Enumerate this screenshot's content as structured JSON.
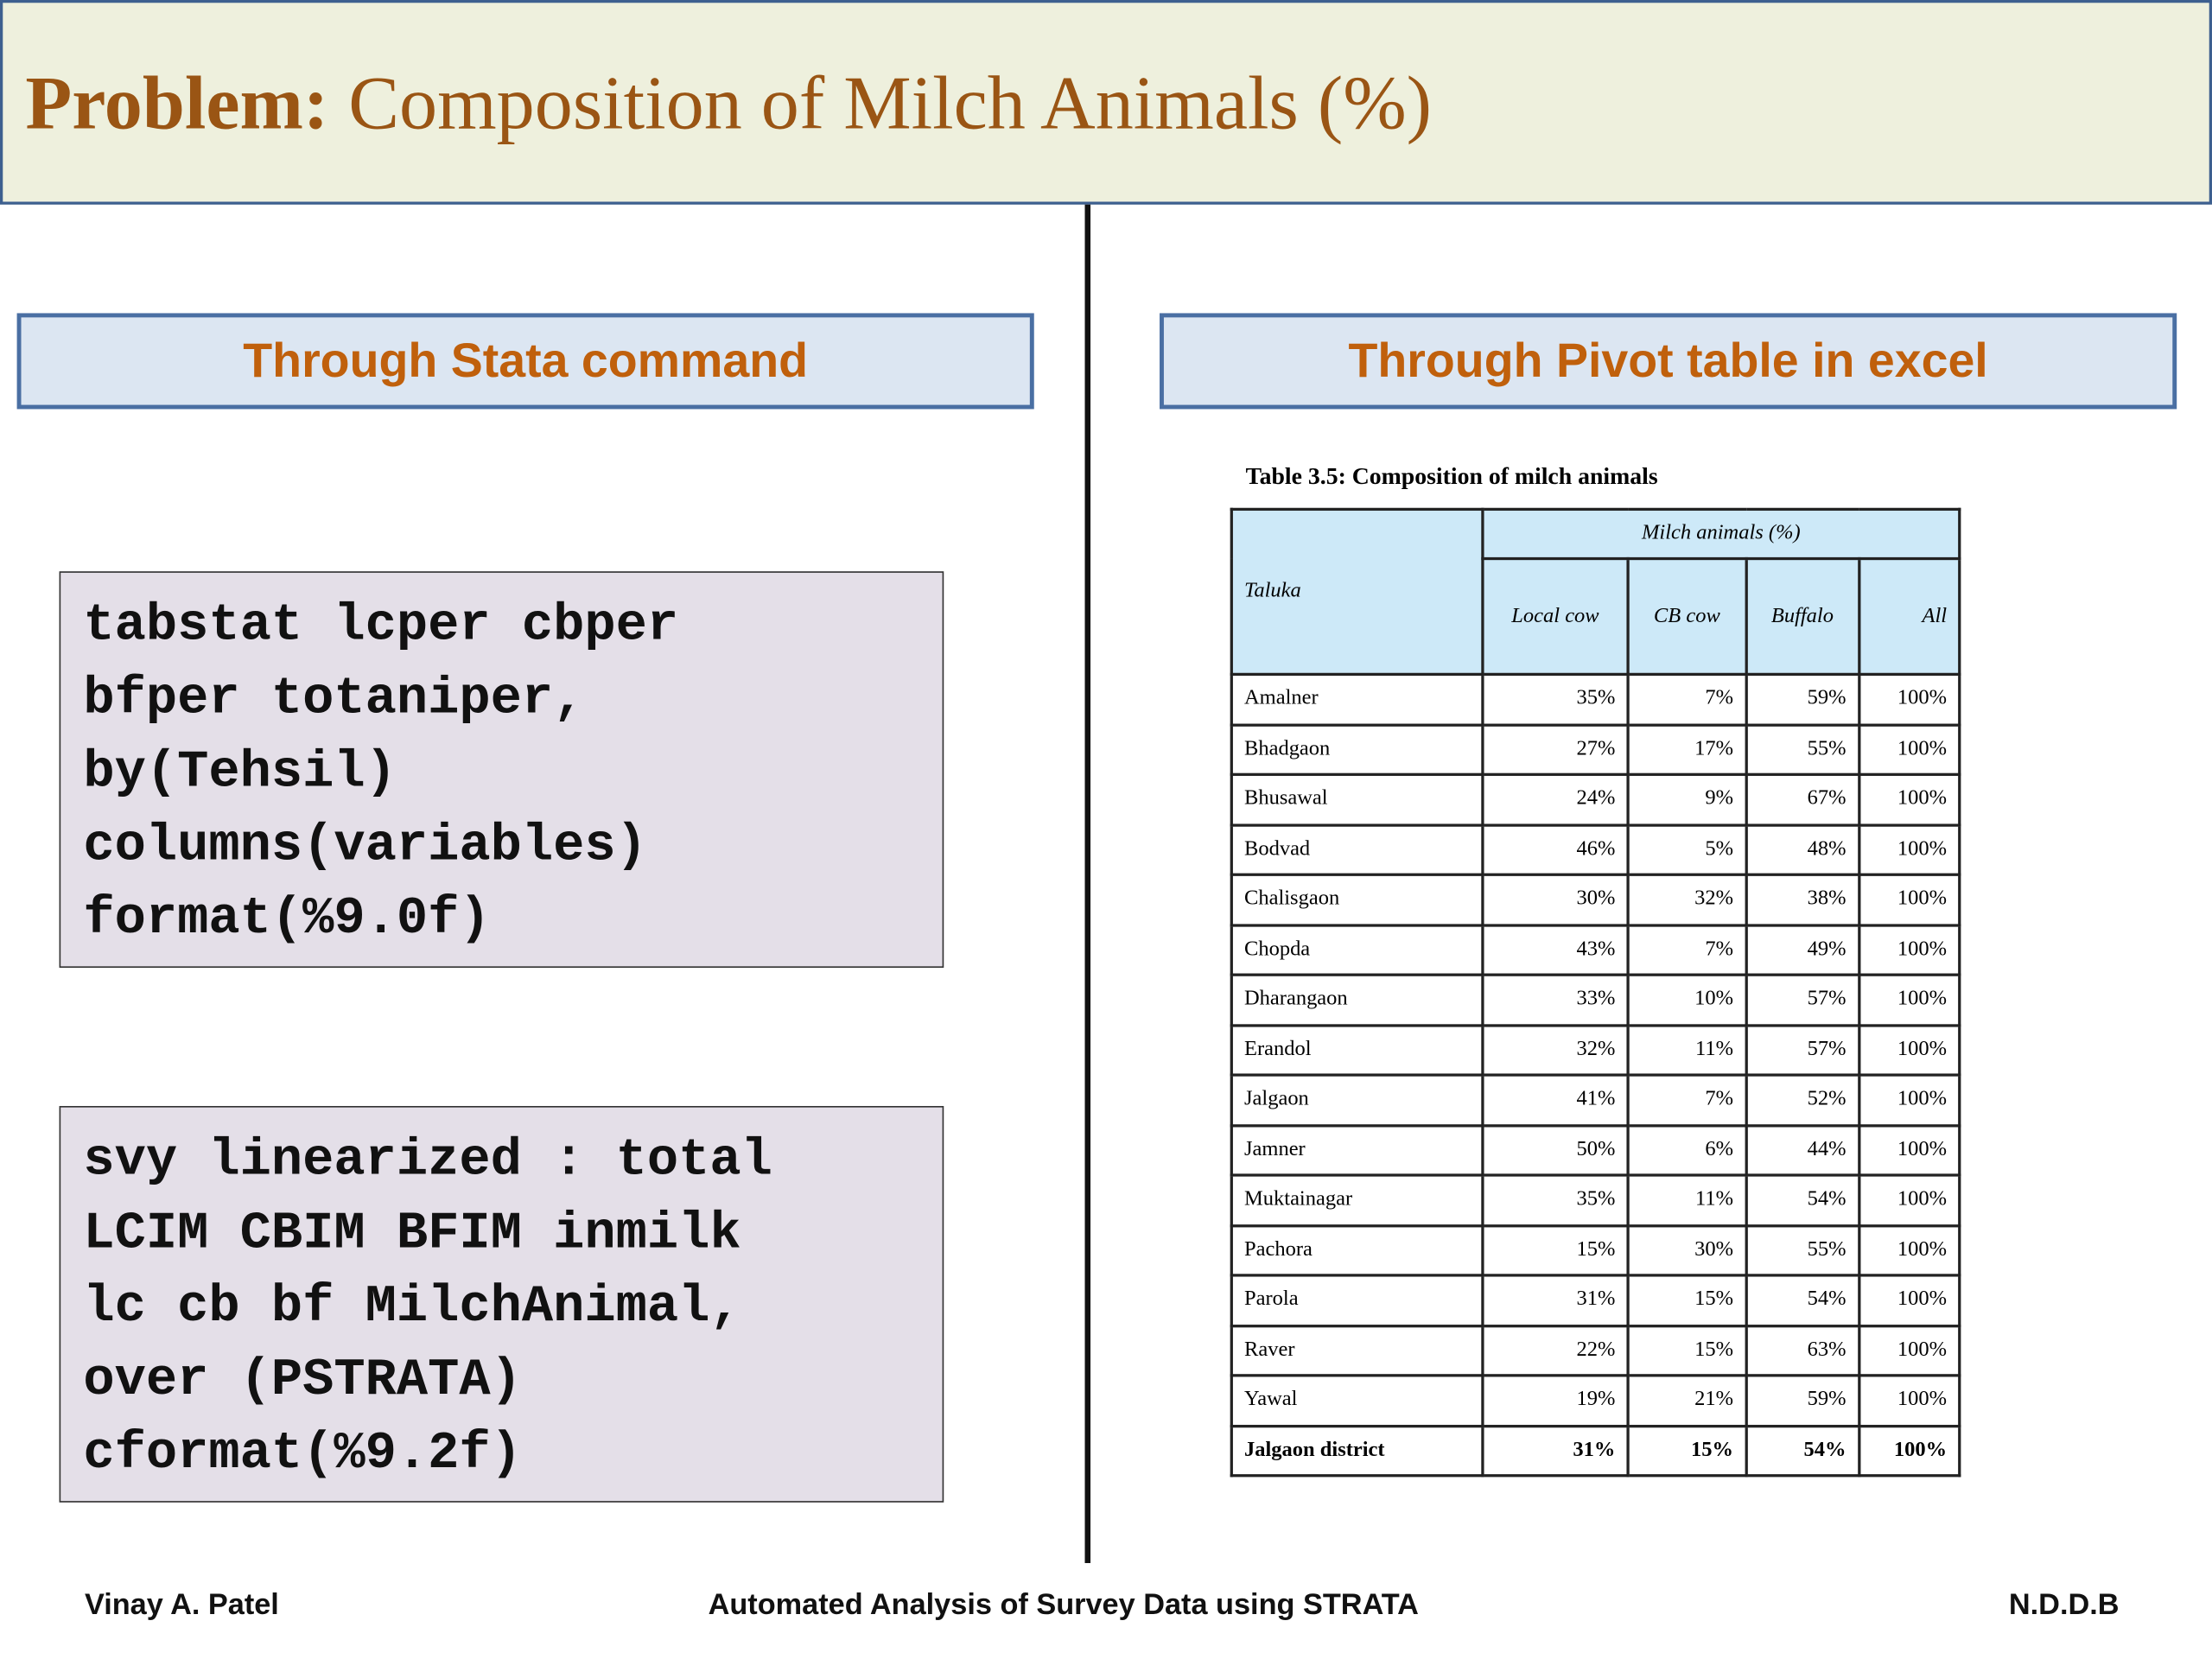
{
  "header": {
    "title_bold": "Problem:",
    "title_rest": "Composition of Milch Animals (%)"
  },
  "left": {
    "heading": "Through Stata command",
    "code_blocks": [
      [
        "tabstat lcper cbper",
        "bfper totaniper,",
        "by(Tehsil)",
        "columns(variables)",
        "format(%9.0f)"
      ],
      [
        "svy linearized : total",
        "LCIM CBIM BFIM inmilk",
        "lc cb bf MilchAnimal,",
        "over (PSTRATA)",
        "cformat(%9.2f)"
      ]
    ]
  },
  "right": {
    "heading": "Through Pivot table in excel",
    "table": {
      "caption": "Table 3.5: Composition of milch animals",
      "row_header": "Taluka",
      "group_header": "Milch animals (%)",
      "columns": [
        "Local cow",
        "CB cow",
        "Buffalo",
        "All"
      ],
      "rows": [
        [
          "Amalner",
          "35%",
          "7%",
          "59%",
          "100%"
        ],
        [
          "Bhadgaon",
          "27%",
          "17%",
          "55%",
          "100%"
        ],
        [
          "Bhusawal",
          "24%",
          "9%",
          "67%",
          "100%"
        ],
        [
          "Bodvad",
          "46%",
          "5%",
          "48%",
          "100%"
        ],
        [
          "Chalisgaon",
          "30%",
          "32%",
          "38%",
          "100%"
        ],
        [
          "Chopda",
          "43%",
          "7%",
          "49%",
          "100%"
        ],
        [
          "Dharangaon",
          "33%",
          "10%",
          "57%",
          "100%"
        ],
        [
          "Erandol",
          "32%",
          "11%",
          "57%",
          "100%"
        ],
        [
          "Jalgaon",
          "41%",
          "7%",
          "52%",
          "100%"
        ],
        [
          "Jamner",
          "50%",
          "6%",
          "44%",
          "100%"
        ],
        [
          "Muktainagar",
          "35%",
          "11%",
          "54%",
          "100%"
        ],
        [
          "Pachora",
          "15%",
          "30%",
          "55%",
          "100%"
        ],
        [
          "Parola",
          "31%",
          "15%",
          "54%",
          "100%"
        ],
        [
          "Raver",
          "22%",
          "15%",
          "63%",
          "100%"
        ],
        [
          "Yawal",
          "19%",
          "21%",
          "59%",
          "100%"
        ],
        [
          "Jalgaon district",
          "31%",
          "15%",
          "54%",
          "100%"
        ]
      ]
    }
  },
  "footer": {
    "left": "Vinay A. Patel",
    "center": "Automated Analysis of Survey Data using STRATA",
    "right": "N.D.D.B"
  }
}
